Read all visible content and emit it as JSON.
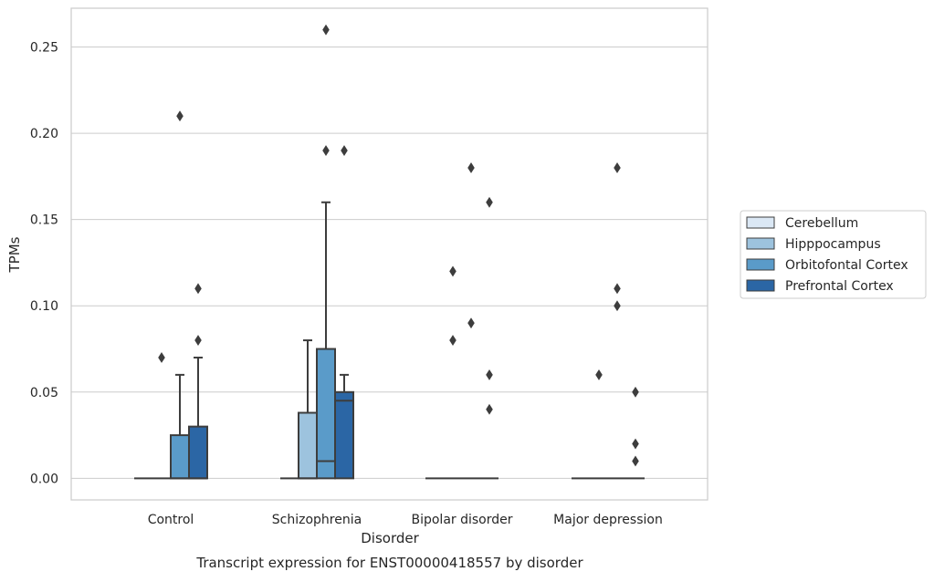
{
  "chart_data": {
    "type": "box",
    "caption": "Transcript expression for ENST00000418557 by disorder",
    "xlabel": "Disorder",
    "ylabel": "TPMs",
    "ylim": [
      -0.0125,
      0.2725
    ],
    "yticks": [
      0.0,
      0.05,
      0.1,
      0.15,
      0.2,
      0.25
    ],
    "ytick_labels": [
      "0.00",
      "0.05",
      "0.10",
      "0.15",
      "0.20",
      "0.25"
    ],
    "grid": "horizontal",
    "legend_position": "right",
    "categories": [
      "Control",
      "Schizophrenia",
      "Bipolar disorder",
      "Major depression"
    ],
    "series": [
      {
        "name": "Cerebellum",
        "color": "#dbe8f5",
        "boxes": [
          {
            "q1": 0.0,
            "median": 0.0,
            "q3": 0.0,
            "whisker_low": 0.0,
            "whisker_high": 0.0,
            "outliers": []
          },
          {
            "q1": 0.0,
            "median": 0.0,
            "q3": 0.0,
            "whisker_low": 0.0,
            "whisker_high": 0.0,
            "outliers": []
          },
          {
            "q1": 0.0,
            "median": 0.0,
            "q3": 0.0,
            "whisker_low": 0.0,
            "whisker_high": 0.0,
            "outliers": []
          },
          {
            "q1": 0.0,
            "median": 0.0,
            "q3": 0.0,
            "whisker_low": 0.0,
            "whisker_high": 0.0,
            "outliers": []
          }
        ]
      },
      {
        "name": "Hipppocampus",
        "color": "#9dc3de",
        "boxes": [
          {
            "q1": 0.0,
            "median": 0.0,
            "q3": 0.0,
            "whisker_low": 0.0,
            "whisker_high": 0.0,
            "outliers": [
              0.07
            ]
          },
          {
            "q1": 0.0,
            "median": 0.0,
            "q3": 0.038,
            "whisker_low": 0.0,
            "whisker_high": 0.08,
            "outliers": []
          },
          {
            "q1": 0.0,
            "median": 0.0,
            "q3": 0.0,
            "whisker_low": 0.0,
            "whisker_high": 0.0,
            "outliers": [
              0.08,
              0.12
            ]
          },
          {
            "q1": 0.0,
            "median": 0.0,
            "q3": 0.0,
            "whisker_low": 0.0,
            "whisker_high": 0.0,
            "outliers": [
              0.06
            ]
          }
        ]
      },
      {
        "name": "Orbitofontal Cortex",
        "color": "#5a9bc9",
        "boxes": [
          {
            "q1": 0.0,
            "median": 0.0,
            "q3": 0.025,
            "whisker_low": 0.0,
            "whisker_high": 0.06,
            "outliers": [
              0.21
            ]
          },
          {
            "q1": 0.0,
            "median": 0.01,
            "q3": 0.075,
            "whisker_low": 0.0,
            "whisker_high": 0.16,
            "outliers": [
              0.19,
              0.26
            ]
          },
          {
            "q1": 0.0,
            "median": 0.0,
            "q3": 0.0,
            "whisker_low": 0.0,
            "whisker_high": 0.0,
            "outliers": [
              0.09,
              0.18
            ]
          },
          {
            "q1": 0.0,
            "median": 0.0,
            "q3": 0.0,
            "whisker_low": 0.0,
            "whisker_high": 0.0,
            "outliers": [
              0.1,
              0.11,
              0.18
            ]
          }
        ]
      },
      {
        "name": "Prefrontal Cortex",
        "color": "#2b66a5",
        "boxes": [
          {
            "q1": 0.0,
            "median": 0.0,
            "q3": 0.03,
            "whisker_low": 0.0,
            "whisker_high": 0.07,
            "outliers": [
              0.08,
              0.11
            ]
          },
          {
            "q1": 0.0,
            "median": 0.045,
            "q3": 0.05,
            "whisker_low": 0.0,
            "whisker_high": 0.06,
            "outliers": [
              0.19
            ]
          },
          {
            "q1": 0.0,
            "median": 0.0,
            "q3": 0.0,
            "whisker_low": 0.0,
            "whisker_high": 0.0,
            "outliers": [
              0.04,
              0.06,
              0.16
            ]
          },
          {
            "q1": 0.0,
            "median": 0.0,
            "q3": 0.0,
            "whisker_low": 0.0,
            "whisker_high": 0.0,
            "outliers": [
              0.01,
              0.02,
              0.05
            ]
          }
        ]
      }
    ]
  }
}
